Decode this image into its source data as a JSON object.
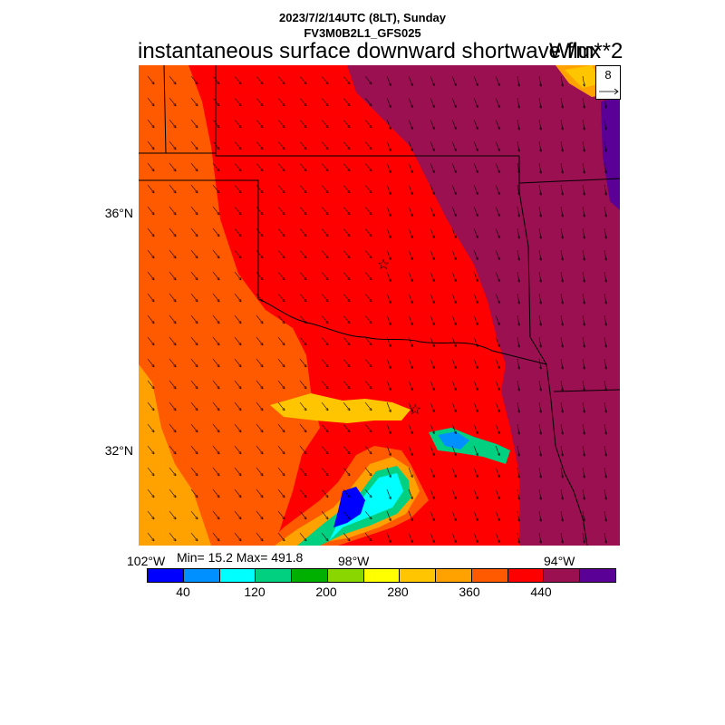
{
  "header": {
    "datetime": "2023/7/2/14UTC (8LT), Sunday",
    "model": "FV3M0B2L1_GFS025",
    "title": "instantaneous surface downward shortwave flux",
    "units": "W/m**2"
  },
  "map": {
    "lat_labels": [
      "36°N",
      "32°N"
    ],
    "lon_labels": [
      "102°W",
      "98°W",
      "94°W"
    ],
    "min_max_text": "Min= 15.2 Max= 491.8",
    "reference_vector": "8",
    "colors": {
      "purple": "#9b1050",
      "red": "#ff0000",
      "orange_red": "#ff5a00",
      "orange": "#ffa200",
      "gold": "#ffc600",
      "yellow": "#ffff00",
      "lime": "#8ad600",
      "green": "#00b000",
      "teal": "#00d080",
      "cyan": "#00ffff",
      "azure": "#0090ff",
      "blue": "#0000ff",
      "indigo": "#5a0096"
    }
  },
  "colorbar": {
    "colors": [
      "#0000ff",
      "#0090ff",
      "#00ffff",
      "#00d080",
      "#00b000",
      "#8ad600",
      "#ffff00",
      "#ffc600",
      "#ffa200",
      "#ff5a00",
      "#ff0000",
      "#9b1050",
      "#5a0096"
    ],
    "labels": [
      "40",
      "120",
      "200",
      "280",
      "360",
      "440"
    ]
  }
}
